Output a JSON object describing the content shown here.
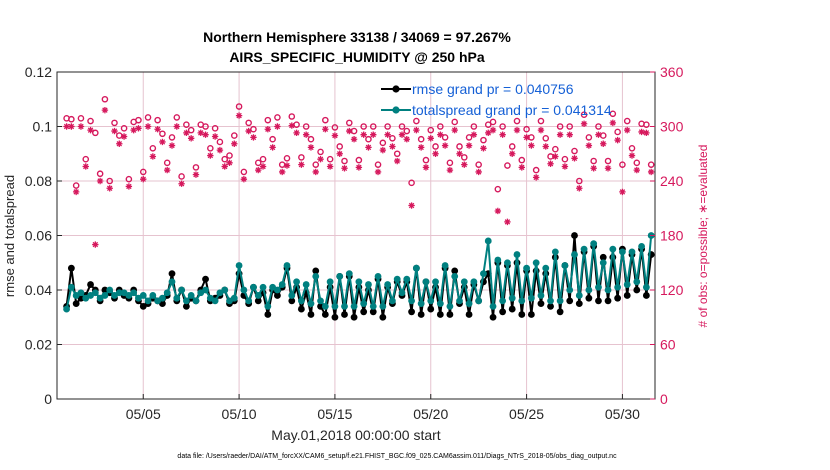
{
  "chart_data": {
    "type": "line",
    "title": "Northern Hemisphere 33138 / 34069 = 97.267%",
    "subtitle": "AIRS_SPECIFIC_HUMIDITY @ 250 hPa",
    "xlabel": "May.01,2018 00:00:00 start",
    "ylabel": "rmse and totalspread",
    "ylabel_right": "# of obs: o=possible; ∗=evaluated",
    "footer": "data file: /Users/raeder/DAI/ATM_forcXX/CAM6_setup/f.e21.FHIST_BGC.f09_025.CAM6assim.011/Diags_NTrS_2018-05/obs_diag_output.nc",
    "xlim": [
      0.5,
      31.7
    ],
    "x_ticks": [
      5,
      10,
      15,
      20,
      25,
      30
    ],
    "x_tick_labels": [
      "05/05",
      "05/10",
      "05/15",
      "05/20",
      "05/25",
      "05/30"
    ],
    "ylim": [
      0,
      0.12
    ],
    "y_ticks": [
      0,
      0.02,
      0.04,
      0.06,
      0.08,
      0.1,
      0.12
    ],
    "y_tick_labels": [
      "0",
      "0.02",
      "0.04",
      "0.06",
      "0.08",
      "0.1",
      "0.12"
    ],
    "ylim_right": [
      0,
      360
    ],
    "y_ticks_right": [
      0,
      60,
      120,
      180,
      240,
      300,
      360
    ],
    "y_tick_labels_right": [
      "0",
      "60",
      "120",
      "180",
      "240",
      "300",
      "360"
    ],
    "grid": true,
    "legend_placement": "top-right",
    "colors": {
      "rmse": "#000000",
      "spread": "#008080",
      "obs": "#d6195d",
      "legend_text": "#1560d6",
      "grid": "#e6c3cf"
    },
    "series": [
      {
        "name": "rmse grand pr = 0.040756",
        "marker": "filled-circle",
        "x": [
          1,
          1.25,
          1.5,
          1.75,
          2,
          2.25,
          2.5,
          2.75,
          3,
          3.25,
          3.5,
          3.75,
          4,
          4.25,
          4.5,
          4.75,
          5,
          5.25,
          5.5,
          5.75,
          6,
          6.25,
          6.5,
          6.75,
          7,
          7.25,
          7.5,
          7.75,
          8,
          8.25,
          8.5,
          8.75,
          9,
          9.25,
          9.5,
          9.75,
          10,
          10.25,
          10.5,
          10.75,
          11,
          11.25,
          11.5,
          11.75,
          12,
          12.25,
          12.5,
          12.75,
          13,
          13.25,
          13.5,
          13.75,
          14,
          14.25,
          14.5,
          14.75,
          15,
          15.25,
          15.5,
          15.75,
          16,
          16.25,
          16.5,
          16.75,
          17,
          17.25,
          17.5,
          17.75,
          18,
          18.25,
          18.5,
          18.75,
          19,
          19.25,
          19.5,
          19.75,
          20,
          20.25,
          20.5,
          20.75,
          21,
          21.25,
          21.5,
          21.75,
          22,
          22.25,
          22.5,
          22.75,
          23,
          23.25,
          23.5,
          23.75,
          24,
          24.25,
          24.5,
          24.75,
          25,
          25.25,
          25.5,
          25.75,
          26,
          26.25,
          26.5,
          26.75,
          27,
          27.25,
          27.5,
          27.75,
          28,
          28.25,
          28.5,
          28.75,
          29,
          29.25,
          29.5,
          29.75,
          30,
          30.25,
          30.5,
          30.75,
          31,
          31.25,
          31.5
        ],
        "values": [
          0.034,
          0.048,
          0.035,
          0.037,
          0.038,
          0.042,
          0.04,
          0.036,
          0.04,
          0.039,
          0.037,
          0.04,
          0.038,
          0.037,
          0.04,
          0.036,
          0.034,
          0.035,
          0.037,
          0.036,
          0.035,
          0.038,
          0.046,
          0.036,
          0.04,
          0.034,
          0.037,
          0.036,
          0.04,
          0.044,
          0.036,
          0.037,
          0.038,
          0.04,
          0.035,
          0.036,
          0.046,
          0.038,
          0.035,
          0.041,
          0.036,
          0.039,
          0.031,
          0.04,
          0.038,
          0.041,
          0.048,
          0.036,
          0.041,
          0.033,
          0.039,
          0.031,
          0.047,
          0.034,
          0.031,
          0.041,
          0.03,
          0.045,
          0.031,
          0.045,
          0.03,
          0.041,
          0.032,
          0.04,
          0.032,
          0.044,
          0.03,
          0.041,
          0.035,
          0.043,
          0.038,
          0.043,
          0.032,
          0.048,
          0.031,
          0.043,
          0.033,
          0.041,
          0.031,
          0.048,
          0.031,
          0.047,
          0.035,
          0.041,
          0.031,
          0.042,
          0.036,
          0.043,
          0.046,
          0.03,
          0.05,
          0.032,
          0.049,
          0.033,
          0.05,
          0.031,
          0.047,
          0.031,
          0.047,
          0.035,
          0.046,
          0.034,
          0.052,
          0.032,
          0.049,
          0.036,
          0.06,
          0.035,
          0.054,
          0.037,
          0.056,
          0.036,
          0.052,
          0.036,
          0.052,
          0.037,
          0.055,
          0.038,
          0.053,
          0.04,
          0.055,
          0.038,
          0.053
        ]
      },
      {
        "name": "totalspread grand pr = 0.041314",
        "marker": "filled-circle",
        "x": [
          1,
          1.25,
          1.5,
          1.75,
          2,
          2.25,
          2.5,
          2.75,
          3,
          3.25,
          3.5,
          3.75,
          4,
          4.25,
          4.5,
          4.75,
          5,
          5.25,
          5.5,
          5.75,
          6,
          6.25,
          6.5,
          6.75,
          7,
          7.25,
          7.5,
          7.75,
          8,
          8.25,
          8.5,
          8.75,
          9,
          9.25,
          9.5,
          9.75,
          10,
          10.25,
          10.5,
          10.75,
          11,
          11.25,
          11.5,
          11.75,
          12,
          12.25,
          12.5,
          12.75,
          13,
          13.25,
          13.5,
          13.75,
          14,
          14.25,
          14.5,
          14.75,
          15,
          15.25,
          15.5,
          15.75,
          16,
          16.25,
          16.5,
          16.75,
          17,
          17.25,
          17.5,
          17.75,
          18,
          18.25,
          18.5,
          18.75,
          19,
          19.25,
          19.5,
          19.75,
          20,
          20.25,
          20.5,
          20.75,
          21,
          21.25,
          21.5,
          21.75,
          22,
          22.25,
          22.5,
          22.75,
          23,
          23.25,
          23.5,
          23.75,
          24,
          24.25,
          24.5,
          24.75,
          25,
          25.25,
          25.5,
          25.75,
          26,
          26.25,
          26.5,
          26.75,
          27,
          27.25,
          27.5,
          27.75,
          28,
          28.25,
          28.5,
          28.75,
          29,
          29.25,
          29.5,
          29.75,
          30,
          30.25,
          30.5,
          30.75,
          31,
          31.25,
          31.5
        ],
        "values": [
          0.033,
          0.041,
          0.038,
          0.039,
          0.037,
          0.038,
          0.039,
          0.037,
          0.038,
          0.04,
          0.038,
          0.039,
          0.039,
          0.038,
          0.039,
          0.037,
          0.038,
          0.036,
          0.038,
          0.036,
          0.037,
          0.039,
          0.043,
          0.037,
          0.04,
          0.036,
          0.038,
          0.036,
          0.039,
          0.04,
          0.037,
          0.036,
          0.039,
          0.04,
          0.036,
          0.037,
          0.049,
          0.04,
          0.036,
          0.041,
          0.038,
          0.041,
          0.034,
          0.041,
          0.04,
          0.042,
          0.049,
          0.038,
          0.043,
          0.036,
          0.042,
          0.035,
          0.045,
          0.036,
          0.034,
          0.043,
          0.034,
          0.045,
          0.034,
          0.046,
          0.034,
          0.043,
          0.035,
          0.042,
          0.034,
          0.045,
          0.034,
          0.042,
          0.036,
          0.044,
          0.039,
          0.044,
          0.036,
          0.048,
          0.035,
          0.043,
          0.036,
          0.043,
          0.035,
          0.049,
          0.034,
          0.045,
          0.036,
          0.043,
          0.035,
          0.043,
          0.036,
          0.046,
          0.058,
          0.034,
          0.051,
          0.036,
          0.05,
          0.037,
          0.053,
          0.036,
          0.048,
          0.037,
          0.05,
          0.038,
          0.048,
          0.036,
          0.054,
          0.036,
          0.049,
          0.04,
          0.053,
          0.038,
          0.055,
          0.04,
          0.057,
          0.041,
          0.05,
          0.04,
          0.055,
          0.041,
          0.054,
          0.042,
          0.054,
          0.043,
          0.056,
          0.041,
          0.06
        ]
      },
      {
        "name": "possible",
        "axis": "right",
        "marker": "open-circle",
        "x": [
          1,
          1.25,
          1.5,
          1.75,
          2,
          2.25,
          2.5,
          2.75,
          3,
          3.25,
          3.5,
          3.75,
          4,
          4.25,
          4.5,
          4.75,
          5,
          5.25,
          5.5,
          5.75,
          6,
          6.25,
          6.5,
          6.75,
          7,
          7.25,
          7.5,
          7.75,
          8,
          8.25,
          8.5,
          8.75,
          9,
          9.25,
          9.5,
          9.75,
          10,
          10.25,
          10.5,
          10.75,
          11,
          11.25,
          11.5,
          11.75,
          12,
          12.25,
          12.5,
          12.75,
          13,
          13.25,
          13.5,
          13.75,
          14,
          14.25,
          14.5,
          14.75,
          15,
          15.25,
          15.5,
          15.75,
          16,
          16.25,
          16.5,
          16.75,
          17,
          17.25,
          17.5,
          17.75,
          18,
          18.25,
          18.5,
          18.75,
          19,
          19.25,
          19.5,
          19.75,
          20,
          20.25,
          20.5,
          20.75,
          21,
          21.25,
          21.5,
          21.75,
          22,
          22.25,
          22.5,
          22.75,
          23,
          23.25,
          23.5,
          23.75,
          24,
          24.25,
          24.5,
          24.75,
          25,
          25.25,
          25.5,
          25.75,
          26,
          26.25,
          26.5,
          26.75,
          27,
          27.25,
          27.5,
          27.75,
          28,
          28.25,
          28.5,
          28.75,
          29,
          29.25,
          29.5,
          29.75,
          30,
          30.25,
          30.5,
          30.75,
          31,
          31.25,
          31.5
        ],
        "values": [
          309,
          308,
          235,
          309,
          264,
          306,
          293,
          248,
          330,
          240,
          304,
          290,
          298,
          242,
          305,
          307,
          250,
          310,
          276,
          307,
          292,
          260,
          288,
          310,
          245,
          302,
          296,
          255,
          302,
          300,
          276,
          298,
          283,
          264,
          268,
          290,
          322,
          250,
          304,
          297,
          260,
          264,
          307,
          286,
          310,
          258,
          265,
          311,
          302,
          266,
          300,
          286,
          258,
          272,
          307,
          264,
          299,
          278,
          262,
          304,
          295,
          263,
          300,
          286,
          300,
          258,
          282,
          300,
          287,
          270,
          300,
          295,
          238,
          306,
          286,
          263,
          296,
          278,
          300,
          288,
          260,
          305,
          278,
          266,
          288,
          300,
          258,
          285,
          302,
          305,
          231,
          300,
          257,
          278,
          306,
          263,
          297,
          288,
          252,
          306,
          287,
          267,
          275,
          300,
          264,
          300,
          273,
          240,
          313,
          288,
          262,
          300,
          290,
          262,
          314,
          294,
          258,
          306,
          276,
          260,
          303,
          302,
          258
        ]
      },
      {
        "name": "evaluated",
        "axis": "right",
        "marker": "asterisk",
        "x": [
          1,
          1.25,
          1.5,
          1.75,
          2,
          2.25,
          2.5,
          2.75,
          3,
          3.25,
          3.5,
          3.75,
          4,
          4.25,
          4.5,
          4.75,
          5,
          5.25,
          5.5,
          5.75,
          6,
          6.25,
          6.5,
          6.75,
          7,
          7.25,
          7.5,
          7.75,
          8,
          8.25,
          8.5,
          8.75,
          9,
          9.25,
          9.5,
          9.75,
          10,
          10.25,
          10.5,
          10.75,
          11,
          11.25,
          11.5,
          11.75,
          12,
          12.25,
          12.5,
          12.75,
          13,
          13.25,
          13.5,
          13.75,
          14,
          14.25,
          14.5,
          14.75,
          15,
          15.25,
          15.5,
          15.75,
          16,
          16.25,
          16.5,
          16.75,
          17,
          17.25,
          17.5,
          17.75,
          18,
          18.25,
          18.5,
          18.75,
          19,
          19.25,
          19.5,
          19.75,
          20,
          20.25,
          20.5,
          20.75,
          21,
          21.25,
          21.5,
          21.75,
          22,
          22.25,
          22.5,
          22.75,
          23,
          23.25,
          23.5,
          23.75,
          24,
          24.25,
          24.5,
          24.75,
          25,
          25.25,
          25.5,
          25.75,
          26,
          26.25,
          26.5,
          26.75,
          27,
          27.25,
          27.5,
          27.75,
          28,
          28.25,
          28.5,
          28.75,
          29,
          29.25,
          29.5,
          29.75,
          30,
          30.25,
          30.5,
          30.75,
          31,
          31.25,
          31.5
        ],
        "values": [
          300,
          300,
          228,
          300,
          256,
          296,
          170,
          240,
          318,
          232,
          295,
          281,
          289,
          234,
          296,
          298,
          242,
          300,
          267,
          297,
          283,
          252,
          279,
          300,
          237,
          293,
          287,
          247,
          293,
          291,
          268,
          289,
          274,
          256,
          260,
          281,
          312,
          242,
          295,
          288,
          252,
          256,
          297,
          277,
          300,
          250,
          257,
          301,
          293,
          258,
          291,
          277,
          250,
          264,
          297,
          256,
          290,
          270,
          254,
          295,
          286,
          255,
          291,
          277,
          291,
          250,
          274,
          291,
          278,
          262,
          291,
          286,
          213,
          296,
          277,
          255,
          287,
          270,
          291,
          279,
          252,
          296,
          270,
          258,
          279,
          291,
          250,
          276,
          293,
          296,
          207,
          291,
          195,
          270,
          296,
          255,
          288,
          279,
          244,
          296,
          278,
          259,
          267,
          291,
          256,
          291,
          265,
          232,
          303,
          279,
          254,
          291,
          281,
          254,
          304,
          285,
          228,
          296,
          268,
          252,
          294,
          293,
          250
        ]
      }
    ]
  }
}
